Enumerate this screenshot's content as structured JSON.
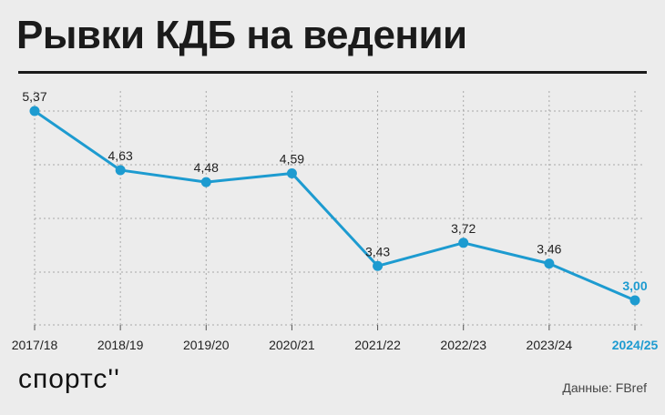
{
  "title": "Рывки КДБ на ведении",
  "logo": "спортс''",
  "source": "Данные: FBref",
  "colors": {
    "line": "#1d9bd0",
    "highlight": "#1d9bd0",
    "grid": "#a8a8a8",
    "text": "#222222",
    "background": "#ececec"
  },
  "chart_data": {
    "type": "line",
    "title": "Рывки КДБ на ведении",
    "xlabel": "",
    "ylabel": "",
    "ylim": [
      3.0,
      5.37
    ],
    "grid": true,
    "categories": [
      "2017/18",
      "2018/19",
      "2019/20",
      "2020/21",
      "2021/22",
      "2022/23",
      "2023/24",
      "2024/25"
    ],
    "values": [
      5.37,
      4.63,
      4.48,
      4.59,
      3.43,
      3.72,
      3.46,
      3.0
    ],
    "value_labels": [
      "5,37",
      "4,63",
      "4,48",
      "4,59",
      "3,43",
      "3,72",
      "3,46",
      "3,00"
    ],
    "highlight_index": 7
  }
}
